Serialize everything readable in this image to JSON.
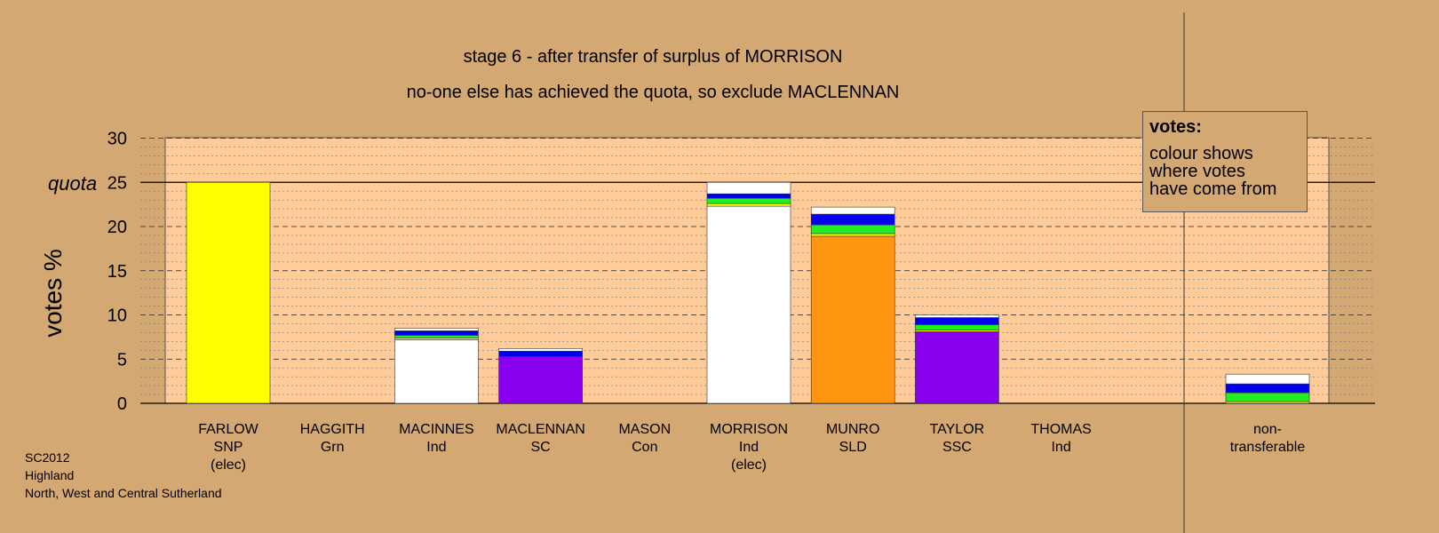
{
  "header": {
    "title": "stage 6 - after transfer of surplus of MORRISON",
    "subtitle": "no-one else has achieved the quota, so exclude MACLENNAN"
  },
  "legend": {
    "title": "votes:",
    "line1": "colour shows",
    "line2": "where votes",
    "line3": "have come from"
  },
  "footer": {
    "line1": "SC2012",
    "line2": "Highland",
    "line3": "North, West and Central Sutherland"
  },
  "chart_data": {
    "type": "bar",
    "stacked": true,
    "ylabel": "votes %",
    "ylim": [
      0,
      30
    ],
    "yticks": [
      0,
      5,
      10,
      15,
      20,
      25,
      30
    ],
    "quota": 25,
    "quota_label": "quota",
    "grid": true,
    "colors": {
      "white": "#FFFFFF",
      "yellow": "#FFFF00",
      "purple": "#8800EE",
      "orange": "#FF9410",
      "blue": "#0000EE",
      "green": "#22EE22"
    },
    "categories": [
      {
        "line1": "FARLOW",
        "line2": "SNP",
        "line3": "(elec)",
        "segments": [
          {
            "color": "yellow",
            "value": 25.0
          }
        ]
      },
      {
        "line1": "HAGGITH",
        "line2": "Grn",
        "line3": "",
        "segments": []
      },
      {
        "line1": "MACINNES",
        "line2": "Ind",
        "line3": "",
        "segments": [
          {
            "color": "white",
            "value": 7.2
          },
          {
            "color": "yellow",
            "value": 0.2
          },
          {
            "color": "green",
            "value": 0.3
          },
          {
            "color": "blue",
            "value": 0.5
          },
          {
            "color": "white",
            "value": 0.3
          }
        ]
      },
      {
        "line1": "MACLENNAN",
        "line2": "SC",
        "line3": "",
        "segments": [
          {
            "color": "purple",
            "value": 5.3
          },
          {
            "color": "blue",
            "value": 0.6
          },
          {
            "color": "white",
            "value": 0.3
          }
        ]
      },
      {
        "line1": "MASON",
        "line2": "Con",
        "line3": "",
        "segments": []
      },
      {
        "line1": "MORRISON",
        "line2": "Ind",
        "line3": "(elec)",
        "segments": [
          {
            "color": "white",
            "value": 22.3
          },
          {
            "color": "yellow",
            "value": 0.3
          },
          {
            "color": "green",
            "value": 0.6
          },
          {
            "color": "blue",
            "value": 0.5
          },
          {
            "color": "white",
            "value": 1.3
          }
        ]
      },
      {
        "line1": "MUNRO",
        "line2": "SLD",
        "line3": "",
        "segments": [
          {
            "color": "orange",
            "value": 18.9
          },
          {
            "color": "yellow",
            "value": 0.3
          },
          {
            "color": "green",
            "value": 1.0
          },
          {
            "color": "blue",
            "value": 1.2
          },
          {
            "color": "white",
            "value": 0.8
          }
        ]
      },
      {
        "line1": "TAYLOR",
        "line2": "SSC",
        "line3": "",
        "segments": [
          {
            "color": "purple",
            "value": 8.1
          },
          {
            "color": "yellow",
            "value": 0.2
          },
          {
            "color": "green",
            "value": 0.6
          },
          {
            "color": "blue",
            "value": 0.8
          },
          {
            "color": "white",
            "value": 0.3
          }
        ]
      },
      {
        "line1": "THOMAS",
        "line2": "Ind",
        "line3": "",
        "segments": []
      }
    ],
    "nontransferable": {
      "line1": "non-",
      "line2": "transferable",
      "segments": [
        {
          "color": "yellow",
          "value": 0.2
        },
        {
          "color": "green",
          "value": 1.0
        },
        {
          "color": "blue",
          "value": 1.0
        },
        {
          "color": "white",
          "value": 1.1
        }
      ]
    }
  }
}
